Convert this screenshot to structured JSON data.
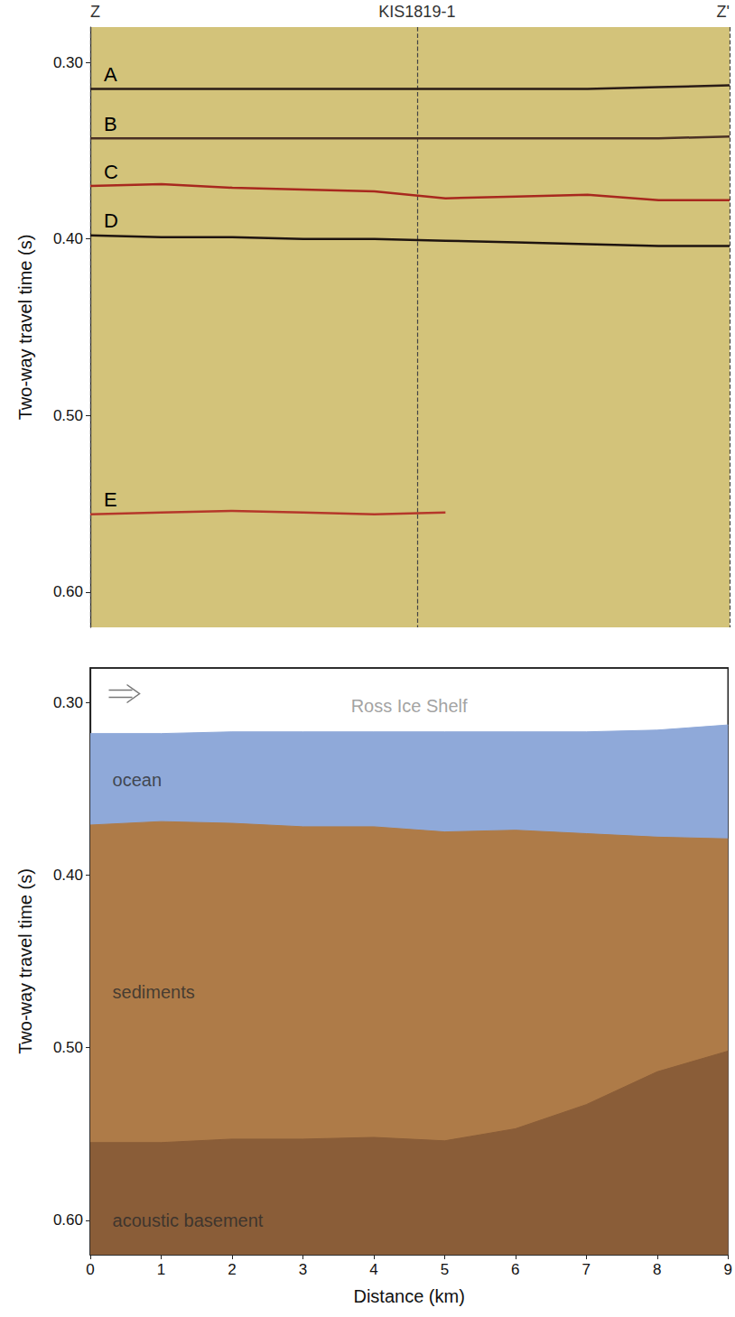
{
  "chart_data": [
    {
      "type": "line",
      "x": [
        0,
        1,
        2,
        3,
        4,
        5,
        6,
        7,
        8,
        9
      ],
      "xlim": [
        0,
        9
      ],
      "xticks": [
        {
          "value": 0,
          "label": "Z"
        },
        {
          "value": 4.6,
          "label": "KIS1819-1"
        },
        {
          "value": 9,
          "label": "Z'"
        }
      ],
      "ylabel": "Two-way travel time (s)",
      "ylim": [
        0.28,
        0.62
      ],
      "yticks": [
        {
          "value": 0.3,
          "label": "0.30"
        },
        {
          "value": 0.4,
          "label": "0.40"
        },
        {
          "value": 0.5,
          "label": "0.50"
        },
        {
          "value": 0.6,
          "label": "0.60"
        }
      ],
      "grid": false,
      "series": [
        {
          "name": "A",
          "color": "#2a1c16",
          "values": [
            0.315,
            0.315,
            0.315,
            0.315,
            0.315,
            0.315,
            0.315,
            0.315,
            0.314,
            0.313
          ]
        },
        {
          "name": "B",
          "color": "#4a3024",
          "values": [
            0.343,
            0.343,
            0.343,
            0.343,
            0.343,
            0.343,
            0.343,
            0.343,
            0.343,
            0.342
          ]
        },
        {
          "name": "C",
          "color": "#a8281e",
          "values": [
            0.37,
            0.369,
            0.371,
            0.372,
            0.373,
            0.377,
            0.376,
            0.375,
            0.378,
            0.378
          ]
        },
        {
          "name": "D",
          "color": "#1e1410",
          "values": [
            0.398,
            0.399,
            0.399,
            0.4,
            0.4,
            0.401,
            0.402,
            0.403,
            0.404,
            0.404
          ]
        },
        {
          "name": "E",
          "color": "#b5372a",
          "values": [
            0.556,
            0.555,
            0.554,
            0.555,
            0.556,
            0.555,
            null,
            null,
            null,
            null
          ]
        }
      ]
    },
    {
      "type": "area",
      "x": [
        0,
        1,
        2,
        3,
        4,
        5,
        6,
        7,
        8,
        9
      ],
      "xlim": [
        0,
        9
      ],
      "xticks": [
        0,
        1,
        2,
        3,
        4,
        5,
        6,
        7,
        8,
        9
      ],
      "xlabel": "Distance (km)",
      "ylabel": "Two-way travel time (s)",
      "ylim": [
        0.28,
        0.62
      ],
      "yticks": [
        {
          "value": 0.3,
          "label": "0.30"
        },
        {
          "value": 0.4,
          "label": "0.40"
        },
        {
          "value": 0.5,
          "label": "0.50"
        },
        {
          "value": 0.6,
          "label": "0.60"
        }
      ],
      "grid": false,
      "series": [
        {
          "name": "ocean",
          "color": "#8fa9d9",
          "values": [
            0.318,
            0.318,
            0.317,
            0.317,
            0.317,
            0.317,
            0.317,
            0.317,
            0.316,
            0.313
          ],
          "label_x": 0.25,
          "label_y": 0.345
        },
        {
          "name": "sediments",
          "color": "#ae7b48",
          "values": [
            0.371,
            0.369,
            0.37,
            0.372,
            0.372,
            0.375,
            0.374,
            0.376,
            0.378,
            0.379
          ],
          "label_x": 0.25,
          "label_y": 0.468
        },
        {
          "name": "acoustic basement",
          "color": "#8a5d38",
          "values": [
            0.555,
            0.555,
            0.553,
            0.553,
            0.552,
            0.554,
            0.547,
            0.533,
            0.514,
            0.502
          ],
          "label_x": 0.25,
          "label_y": 0.6
        }
      ],
      "annotations": [
        {
          "text": "Ross Ice Shelf",
          "x": 4.5,
          "y": 0.302
        }
      ]
    }
  ]
}
